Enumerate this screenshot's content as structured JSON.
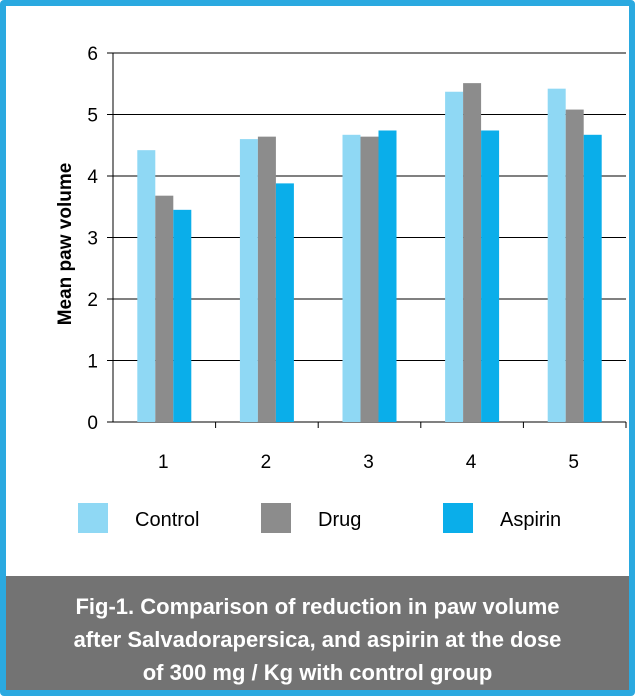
{
  "chart_data": {
    "type": "bar",
    "categories": [
      "1",
      "2",
      "3",
      "4",
      "5"
    ],
    "series": [
      {
        "name": "Control",
        "values": [
          4.42,
          4.6,
          4.67,
          5.37,
          5.42
        ]
      },
      {
        "name": "Drug",
        "values": [
          3.68,
          4.64,
          4.64,
          5.51,
          5.08
        ]
      },
      {
        "name": "Aspirin",
        "values": [
          3.45,
          3.88,
          4.74,
          4.74,
          4.67
        ]
      }
    ],
    "ylabel": "Mean paw volume",
    "xlabel": "",
    "ylim": [
      0,
      6
    ],
    "yticks": [
      "0",
      "1",
      "2",
      "3",
      "4",
      "5",
      "6"
    ],
    "grid": true,
    "legend_position": "bottom"
  },
  "colors": {
    "control": "#8fd8f4",
    "drug": "#8c8c8c",
    "aspirin": "#0aaeea",
    "frame": "#2aa9e0",
    "caption_bg": "#737373"
  },
  "caption": {
    "line1": "Fig-1. Comparison of reduction in paw volume",
    "line2": "after Salvadorapersica, and aspirin at the dose",
    "line3": "of 300 mg / Kg with control group"
  }
}
